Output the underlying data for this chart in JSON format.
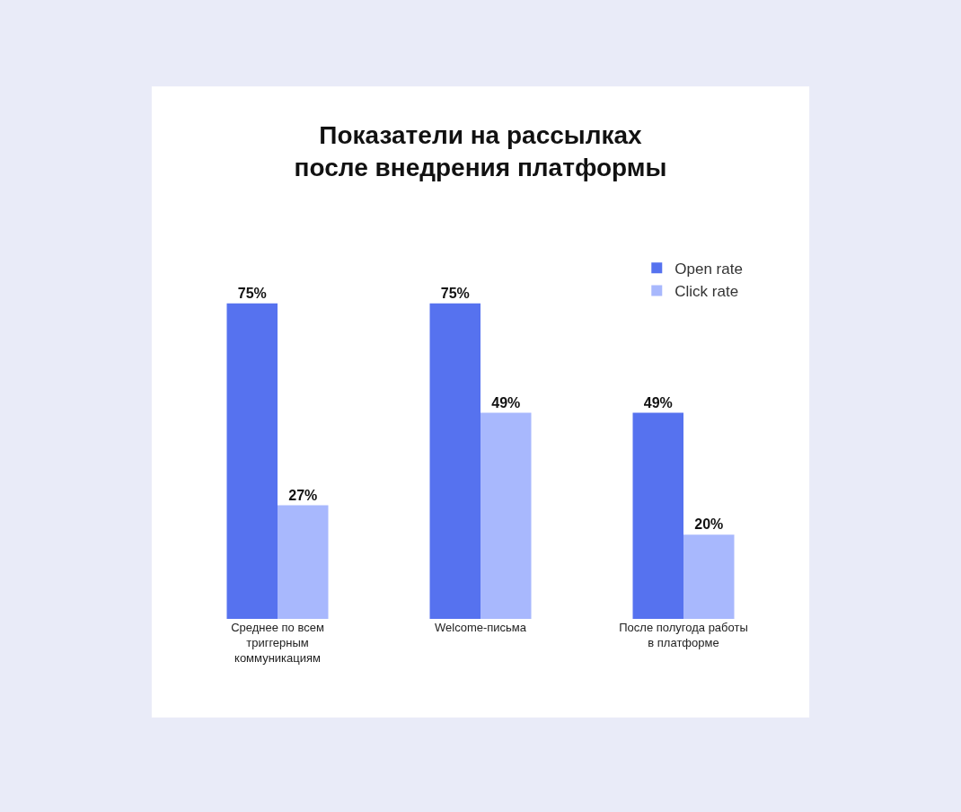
{
  "chart_data": {
    "type": "bar",
    "title": "Показатели на рассылках после внедрения платформы",
    "categories": [
      "Среднее по всем триггерным коммуникациям",
      "Welcome-письма",
      "После полугода работы в платформе"
    ],
    "series": [
      {
        "name": "Open rate",
        "color": "#5672ef",
        "values": [
          75,
          75,
          49
        ],
        "value_labels": [
          "75%",
          "75%",
          "49%"
        ]
      },
      {
        "name": "Click rate",
        "color": "#a8b8fd",
        "values": [
          27,
          49,
          20
        ],
        "value_labels": [
          "27%",
          "49%",
          "20%"
        ]
      }
    ],
    "legend": "top right"
  }
}
